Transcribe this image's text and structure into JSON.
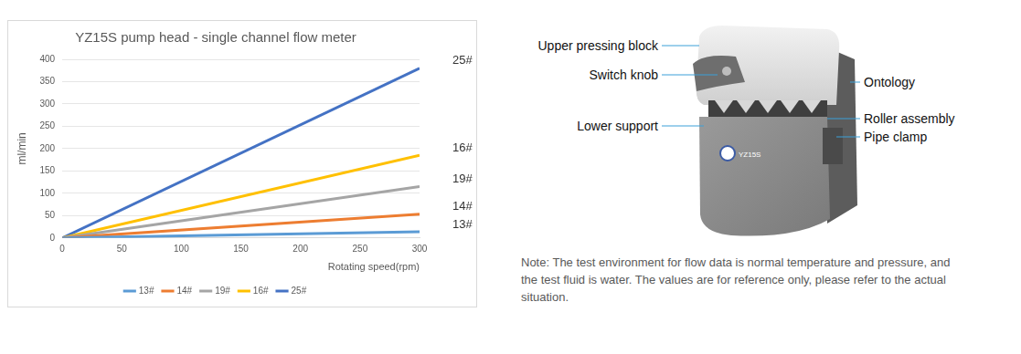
{
  "chart_data": {
    "type": "line",
    "title": "YZ15S pump head - single channel flow meter",
    "x_label": "Rotating speed(rpm)",
    "y_label": "ml/min",
    "x": [
      0,
      300
    ],
    "series": [
      {
        "name": "13#",
        "color": "#5b9bd5",
        "values": [
          0,
          14
        ]
      },
      {
        "name": "14#",
        "color": "#ed7d31",
        "values": [
          0,
          53
        ]
      },
      {
        "name": "19#",
        "color": "#a5a5a5",
        "values": [
          0,
          115
        ]
      },
      {
        "name": "16#",
        "color": "#ffc000",
        "values": [
          0,
          185
        ]
      },
      {
        "name": "25#",
        "color": "#4472c4",
        "values": [
          0,
          380
        ]
      }
    ],
    "xlim": [
      0,
      300
    ],
    "xticks": [
      0,
      50,
      100,
      150,
      200,
      250,
      300
    ],
    "ylim": [
      0,
      400
    ],
    "yticks": [
      0,
      50,
      100,
      150,
      200,
      250,
      300,
      350,
      400
    ],
    "grid": true,
    "legend": "bottom"
  },
  "diagram": {
    "model": "YZ15S",
    "labels": {
      "left": [
        "Upper pressing block",
        "Switch knob",
        "Lower support"
      ],
      "right": [
        "Ontology",
        "Roller assembly",
        "Pipe clamp"
      ]
    }
  },
  "note": "Note: The test environment for flow data is normal temperature and pressure, and the test fluid is water. The values are for reference only, please refer to the actual situation."
}
